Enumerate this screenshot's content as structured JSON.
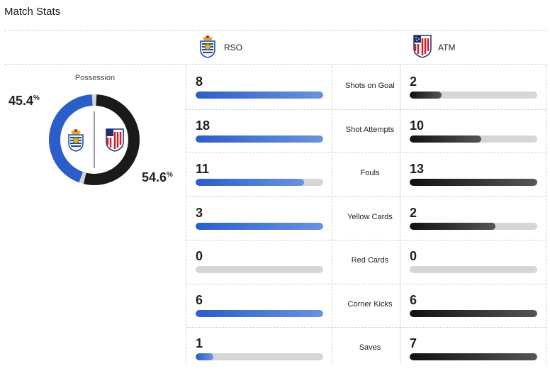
{
  "header": {
    "title": "Match Stats"
  },
  "teams": {
    "home": {
      "abbr": "RSO",
      "logo": "real-sociedad-crest",
      "color": "#2b5ec9"
    },
    "away": {
      "abbr": "ATM",
      "logo": "atletico-madrid-crest",
      "color": "#1a1a1a"
    }
  },
  "possession": {
    "label": "Possession",
    "home_value": 45.4,
    "away_value": 54.6,
    "home_text": "45.4",
    "away_text": "54.6",
    "suffix": "%"
  },
  "stats": [
    {
      "label": "Shots on Goal",
      "home": "8",
      "away": "2",
      "home_fill": 1.0,
      "away_fill": 0.25
    },
    {
      "label": "Shot Attempts",
      "home": "18",
      "away": "10",
      "home_fill": 1.0,
      "away_fill": 0.56
    },
    {
      "label": "Fouls",
      "home": "11",
      "away": "13",
      "home_fill": 0.85,
      "away_fill": 1.0
    },
    {
      "label": "Yellow Cards",
      "home": "3",
      "away": "2",
      "home_fill": 1.0,
      "away_fill": 0.67
    },
    {
      "label": "Red Cards",
      "home": "0",
      "away": "0",
      "home_fill": 0,
      "away_fill": 0
    },
    {
      "label": "Corner Kicks",
      "home": "6",
      "away": "6",
      "home_fill": 1.0,
      "away_fill": 1.0
    },
    {
      "label": "Saves",
      "home": "1",
      "away": "7",
      "home_fill": 0.14,
      "away_fill": 1.0
    }
  ]
}
